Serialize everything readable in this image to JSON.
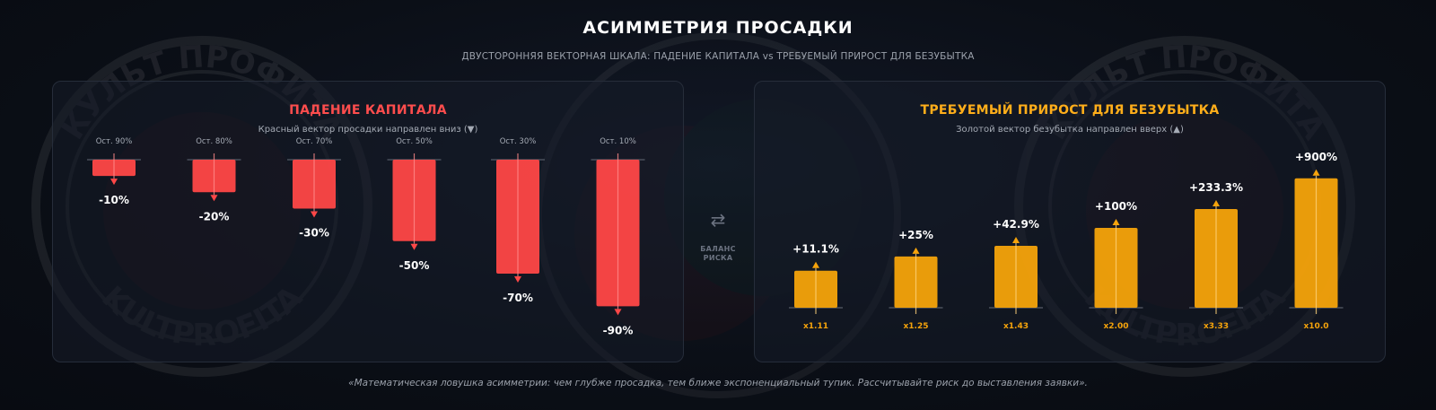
{
  "header": {
    "title": "АСИММЕТРИЯ ПРОСАДКИ",
    "subtitle": "ДВУСТОРОННЯЯ ВЕКТОРНАЯ ШКАЛА: ПАДЕНИЕ КАПИТАЛА vs ТРЕБУЕМЫЙ ПРИРОСТ ДЛЯ БЕЗУБЫТКА"
  },
  "watermark": {
    "top_text": "КУЛЬТ ПРОФИТА",
    "bottom_text": "KULTPROFITA"
  },
  "center": {
    "icon": "swap-arrows-icon",
    "label_line1": "БАЛАНС",
    "label_line2": "РИСКА"
  },
  "footer": {
    "quote": "«Математическая ловушка асимметрии: чем глубже просадка, тем ближе экспоненциальный тупик. Рассчитывайте риск до выставления заявки»."
  },
  "colors": {
    "loss": "#ff4747",
    "gain": "#f5a30b",
    "loss_title": "#ff4d4d",
    "gain_title": "#ffae1a"
  },
  "chart_data": [
    {
      "type": "bar",
      "title": "ПАДЕНИЕ КАПИТАЛА",
      "subtitle": "Красный вектор просадки направлен вниз (▼)",
      "categories": [
        "Ост. 90%",
        "Ост. 80%",
        "Ост. 70%",
        "Ост. 50%",
        "Ост. 30%",
        "Ост. 10%"
      ],
      "values": [
        -10,
        -20,
        -30,
        -50,
        -70,
        -90
      ],
      "value_labels": [
        "-10%",
        "-20%",
        "-30%",
        "-50%",
        "-70%",
        "-90%"
      ],
      "ylim": [
        -100,
        0
      ],
      "direction": "down"
    },
    {
      "type": "bar",
      "title": "ТРЕБУЕМЫЙ ПРИРОСТ ДЛЯ БЕЗУБЫТКА",
      "subtitle": "Золотой вектор безубытка направлен вверх (▲)",
      "categories": [
        "x1.11",
        "x1.25",
        "x1.43",
        "x2.00",
        "x3.33",
        "x10.0"
      ],
      "values": [
        11.1,
        25,
        42.9,
        100,
        233.3,
        900
      ],
      "value_labels": [
        "+11.1%",
        "+25%",
        "+42.9%",
        "+100%",
        "+233.3%",
        "+900%"
      ],
      "scale": "compressed",
      "direction": "up"
    }
  ]
}
